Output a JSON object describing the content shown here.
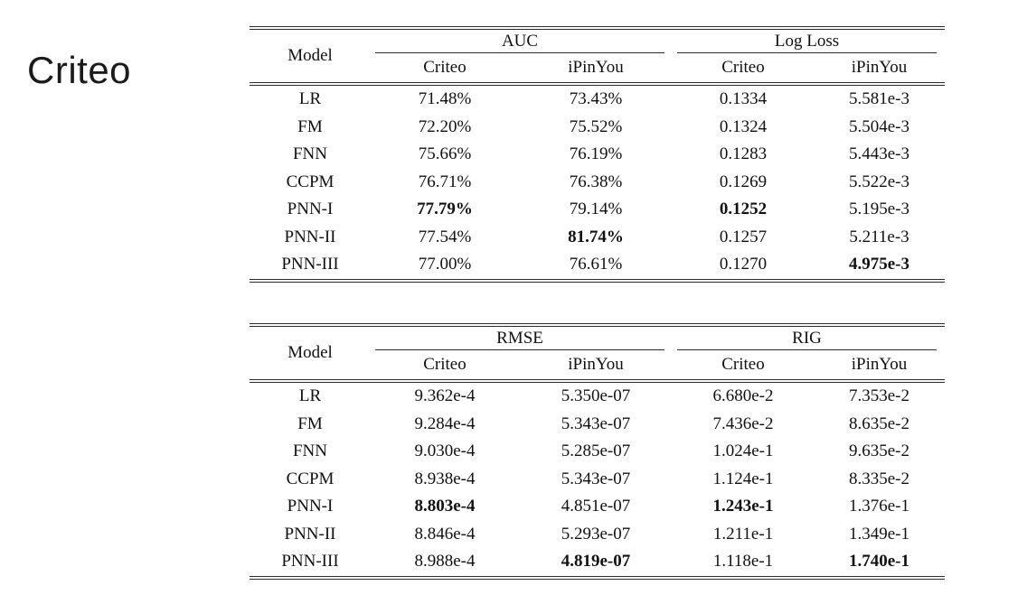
{
  "page": {
    "background": "#ffffff",
    "text_color": "#111111",
    "rule_color": "#2b2b2b"
  },
  "slide": {
    "title": "Criteo"
  },
  "tables": [
    {
      "id": "auc-logloss",
      "model_header": "Model",
      "groups": [
        {
          "label": "AUC",
          "subcols": [
            "Criteo",
            "iPinYou"
          ]
        },
        {
          "label": "Log Loss",
          "subcols": [
            "Criteo",
            "iPinYou"
          ]
        }
      ],
      "rows": [
        {
          "model": "LR",
          "values": [
            "71.48%",
            "73.43%",
            "0.1334",
            "5.581e-3"
          ],
          "bold": [
            false,
            false,
            false,
            false
          ]
        },
        {
          "model": "FM",
          "values": [
            "72.20%",
            "75.52%",
            "0.1324",
            "5.504e-3"
          ],
          "bold": [
            false,
            false,
            false,
            false
          ]
        },
        {
          "model": "FNN",
          "values": [
            "75.66%",
            "76.19%",
            "0.1283",
            "5.443e-3"
          ],
          "bold": [
            false,
            false,
            false,
            false
          ]
        },
        {
          "model": "CCPM",
          "values": [
            "76.71%",
            "76.38%",
            "0.1269",
            "5.522e-3"
          ],
          "bold": [
            false,
            false,
            false,
            false
          ]
        },
        {
          "model": "PNN-I",
          "values": [
            "77.79%",
            "79.14%",
            "0.1252",
            "5.195e-3"
          ],
          "bold": [
            true,
            false,
            true,
            false
          ]
        },
        {
          "model": "PNN-II",
          "values": [
            "77.54%",
            "81.74%",
            "0.1257",
            "5.211e-3"
          ],
          "bold": [
            false,
            true,
            false,
            false
          ]
        },
        {
          "model": "PNN-III",
          "values": [
            "77.00%",
            "76.61%",
            "0.1270",
            "4.975e-3"
          ],
          "bold": [
            false,
            false,
            false,
            true
          ]
        }
      ]
    },
    {
      "id": "rmse-rig",
      "model_header": "Model",
      "groups": [
        {
          "label": "RMSE",
          "subcols": [
            "Criteo",
            "iPinYou"
          ]
        },
        {
          "label": "RIG",
          "subcols": [
            "Criteo",
            "iPinYou"
          ]
        }
      ],
      "rows": [
        {
          "model": "LR",
          "values": [
            "9.362e-4",
            "5.350e-07",
            "6.680e-2",
            "7.353e-2"
          ],
          "bold": [
            false,
            false,
            false,
            false
          ]
        },
        {
          "model": "FM",
          "values": [
            "9.284e-4",
            "5.343e-07",
            "7.436e-2",
            "8.635e-2"
          ],
          "bold": [
            false,
            false,
            false,
            false
          ]
        },
        {
          "model": "FNN",
          "values": [
            "9.030e-4",
            "5.285e-07",
            "1.024e-1",
            "9.635e-2"
          ],
          "bold": [
            false,
            false,
            false,
            false
          ]
        },
        {
          "model": "CCPM",
          "values": [
            "8.938e-4",
            "5.343e-07",
            "1.124e-1",
            "8.335e-2"
          ],
          "bold": [
            false,
            false,
            false,
            false
          ]
        },
        {
          "model": "PNN-I",
          "values": [
            "8.803e-4",
            "4.851e-07",
            "1.243e-1",
            "1.376e-1"
          ],
          "bold": [
            true,
            false,
            true,
            false
          ]
        },
        {
          "model": "PNN-II",
          "values": [
            "8.846e-4",
            "5.293e-07",
            "1.211e-1",
            "1.349e-1"
          ],
          "bold": [
            false,
            false,
            false,
            false
          ]
        },
        {
          "model": "PNN-III",
          "values": [
            "8.988e-4",
            "4.819e-07",
            "1.118e-1",
            "1.740e-1"
          ],
          "bold": [
            false,
            true,
            false,
            true
          ]
        }
      ]
    }
  ]
}
